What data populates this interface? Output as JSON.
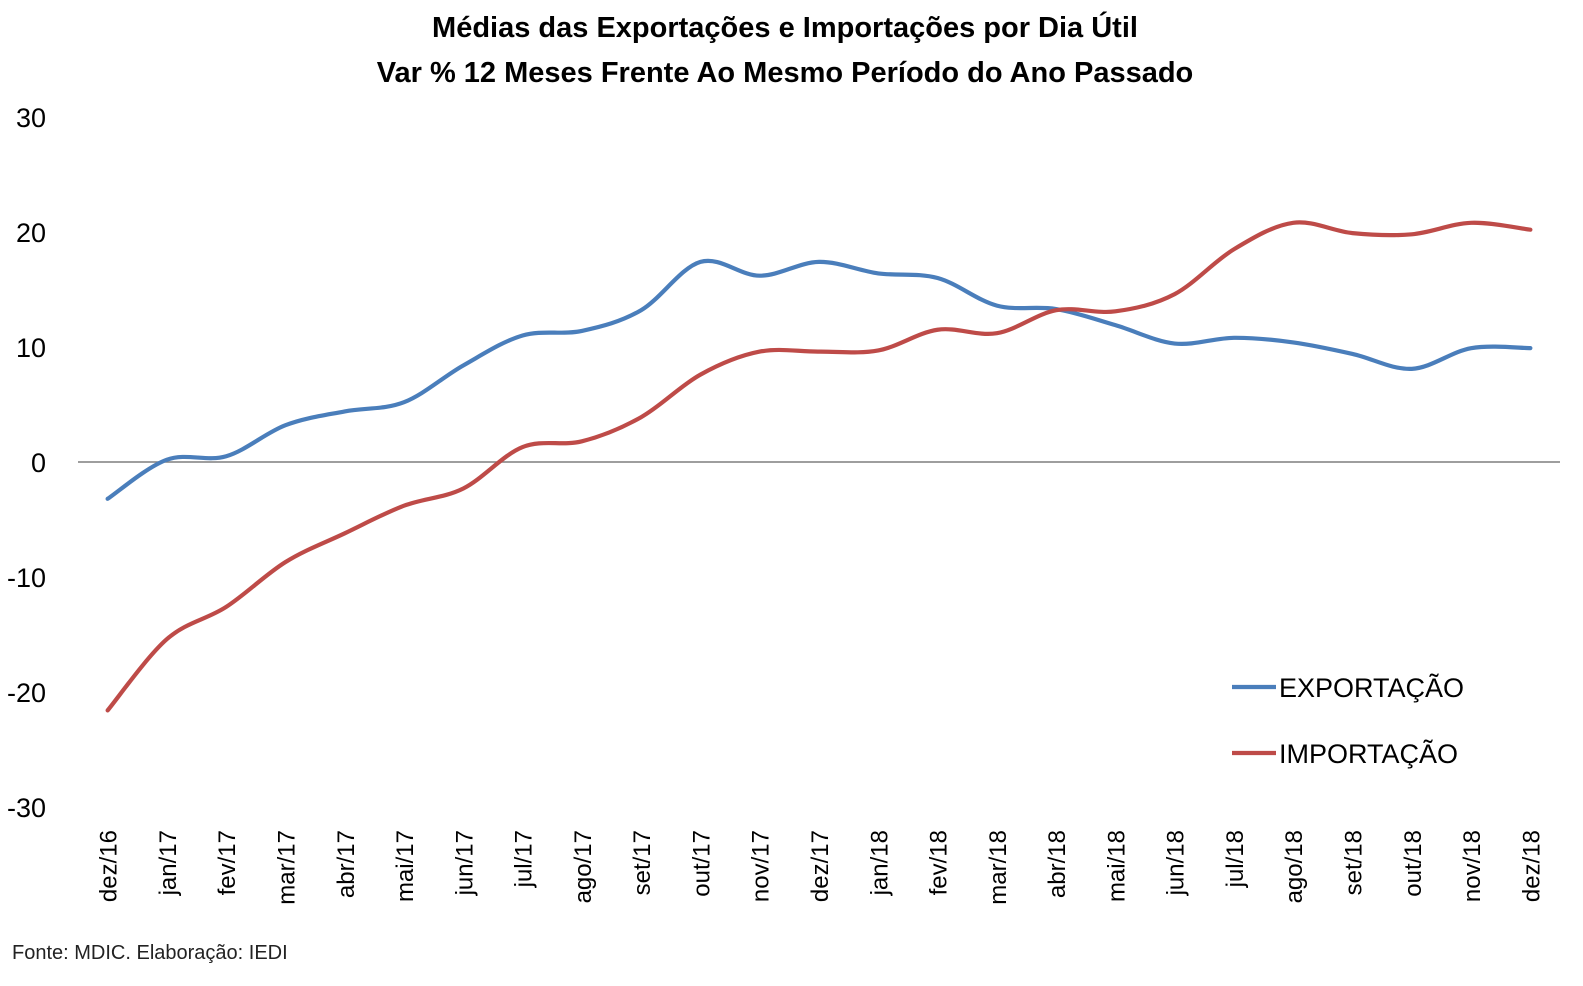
{
  "chart_data": {
    "type": "line",
    "title": "Médias das Exportações e Importações por Dia Útil",
    "subtitle": "Var % 12 Meses Frente Ao Mesmo Período do Ano Passado",
    "categories": [
      "dez/16",
      "jan/17",
      "fev/17",
      "mar/17",
      "abr/17",
      "mai/17",
      "jun/17",
      "jul/17",
      "ago/17",
      "set/17",
      "out/17",
      "nov/17",
      "dez/17",
      "jan/18",
      "fev/18",
      "mar/18",
      "abr/18",
      "mai/18",
      "jun/18",
      "jul/18",
      "ago/18",
      "set/18",
      "out/18",
      "nov/18",
      "dez/18"
    ],
    "series": [
      {
        "name": "EXPORTAÇÃO",
        "color": "#4a7ebb",
        "values": [
          -3.2,
          0.2,
          0.5,
          3.2,
          4.4,
          5.2,
          8.4,
          11.0,
          11.4,
          13.2,
          17.4,
          16.2,
          17.4,
          16.4,
          16.0,
          13.6,
          13.3,
          11.9,
          10.3,
          10.8,
          10.4,
          9.4,
          8.1,
          9.9,
          9.9
        ]
      },
      {
        "name": "IMPORTAÇÃO",
        "color": "#be4b48",
        "values": [
          -21.6,
          -15.4,
          -12.6,
          -8.7,
          -6.2,
          -3.8,
          -2.3,
          1.3,
          1.8,
          3.9,
          7.6,
          9.6,
          9.6,
          9.7,
          11.5,
          11.2,
          13.2,
          13.1,
          14.6,
          18.5,
          20.8,
          19.9,
          19.8,
          20.8,
          20.2
        ]
      }
    ],
    "ylim": [
      -30,
      30
    ],
    "yticks": [
      -30,
      -20,
      -10,
      0,
      10,
      20,
      30
    ],
    "legend_position": "bottom-right",
    "grid": false,
    "source": "Fonte: MDIC. Elaboração: IEDI"
  }
}
